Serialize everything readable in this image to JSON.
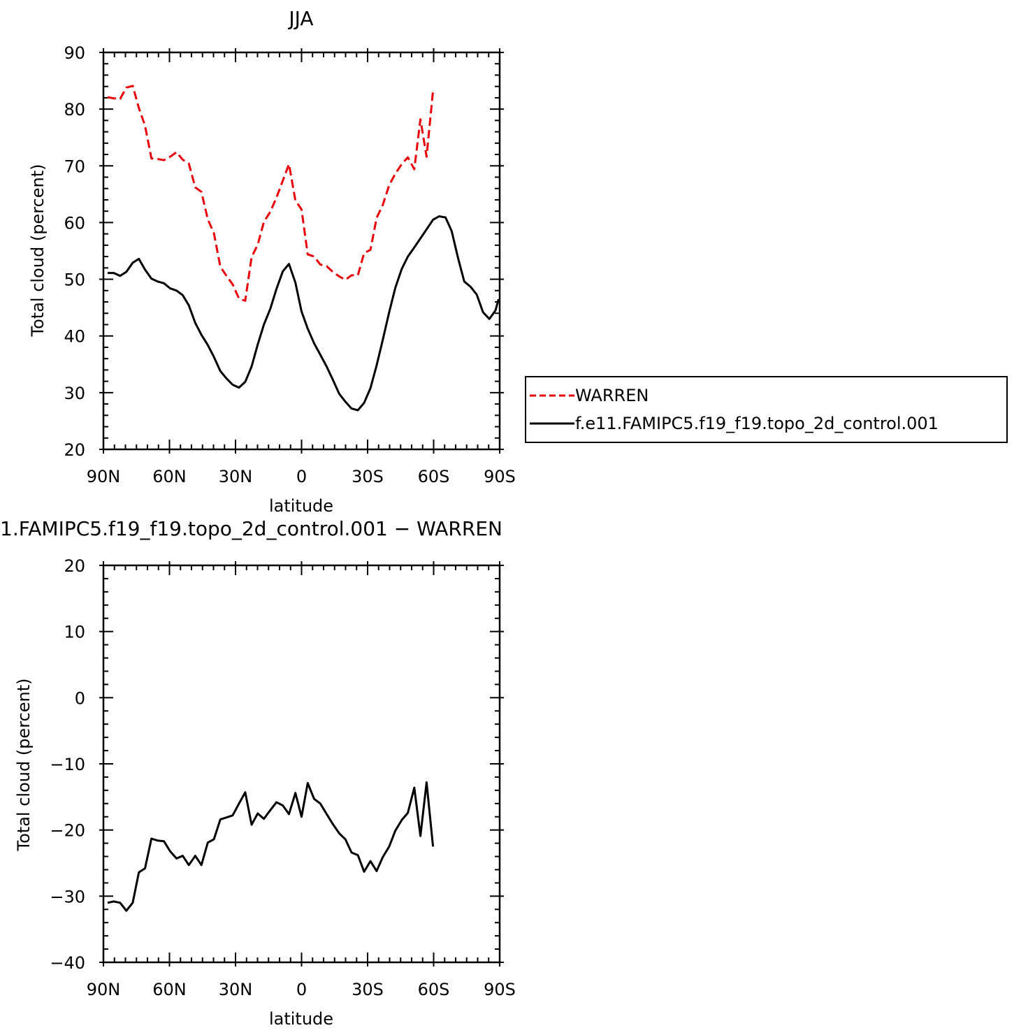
{
  "colors": {
    "warren": "#e8000b",
    "model": "#000000",
    "axes": "#000000",
    "background": "#ffffff"
  },
  "chart_data": [
    {
      "id": "top",
      "type": "line",
      "title": "JJA",
      "xlabel": "latitude",
      "ylabel": "Total cloud (percent)",
      "xlim": [
        -90,
        90
      ],
      "ylim": [
        20,
        90
      ],
      "x_direction": "north (90N) on left to south (90S) on right",
      "xticks": [
        -90,
        -60,
        -30,
        0,
        30,
        60,
        90
      ],
      "xtick_labels": [
        "90N",
        "60N",
        "30N",
        "0",
        "30S",
        "60S",
        "90S"
      ],
      "yticks": [
        20,
        30,
        40,
        50,
        60,
        70,
        80,
        90
      ],
      "ytick_labels": [
        "20",
        "30",
        "40",
        "50",
        "60",
        "70",
        "80",
        "90"
      ],
      "grid": false,
      "legend_position": "right of plot",
      "series": [
        {
          "name": "WARREN",
          "style": "dashed",
          "color": "#e8000b",
          "points": [
            [
              -88.1,
              82.1
            ],
            [
              -85.3,
              81.9
            ],
            [
              -82.4,
              81.8
            ],
            [
              -79.6,
              83.8
            ],
            [
              -76.7,
              84.1
            ],
            [
              -73.9,
              80.2
            ],
            [
              -71.1,
              77.1
            ],
            [
              -68.2,
              71.3
            ],
            [
              -65.4,
              71.2
            ],
            [
              -62.5,
              71.0
            ],
            [
              -59.7,
              71.6
            ],
            [
              -56.8,
              72.4
            ],
            [
              -54.0,
              71.1
            ],
            [
              -51.2,
              70.4
            ],
            [
              -48.3,
              66.2
            ],
            [
              -45.5,
              65.4
            ],
            [
              -42.6,
              60.6
            ],
            [
              -39.8,
              58.1
            ],
            [
              -36.9,
              52.2
            ],
            [
              -34.1,
              50.6
            ],
            [
              -31.3,
              49.1
            ],
            [
              -28.4,
              46.6
            ],
            [
              -25.6,
              46.2
            ],
            [
              -22.7,
              53.9
            ],
            [
              -19.9,
              56.1
            ],
            [
              -17.1,
              60.1
            ],
            [
              -14.2,
              61.9
            ],
            [
              -11.4,
              64.4
            ],
            [
              -8.5,
              67.4
            ],
            [
              -5.7,
              70.3
            ],
            [
              -2.8,
              63.9
            ],
            [
              0.0,
              62.3
            ],
            [
              2.8,
              54.4
            ],
            [
              5.7,
              54.0
            ],
            [
              8.5,
              52.6
            ],
            [
              11.4,
              52.3
            ],
            [
              14.2,
              51.3
            ],
            [
              17.1,
              50.5
            ],
            [
              19.9,
              49.9
            ],
            [
              22.7,
              50.7
            ],
            [
              25.6,
              50.7
            ],
            [
              28.4,
              54.6
            ],
            [
              31.3,
              55.2
            ],
            [
              34.1,
              60.8
            ],
            [
              36.9,
              63.1
            ],
            [
              39.8,
              66.6
            ],
            [
              42.6,
              68.6
            ],
            [
              45.5,
              70.3
            ],
            [
              48.3,
              71.5
            ],
            [
              51.2,
              69.4
            ],
            [
              54.0,
              78.2
            ],
            [
              56.8,
              71.6
            ],
            [
              59.7,
              83.2
            ]
          ]
        },
        {
          "name": "f.e11.FAMIPC5.f19_f19.topo_2d_control.001",
          "style": "solid",
          "color": "#000000",
          "points": [
            [
              -88.1,
              51.1
            ],
            [
              -85.3,
              51.1
            ],
            [
              -82.4,
              50.6
            ],
            [
              -79.6,
              51.3
            ],
            [
              -76.7,
              52.9
            ],
            [
              -73.9,
              53.6
            ],
            [
              -71.1,
              51.7
            ],
            [
              -68.2,
              50.1
            ],
            [
              -65.4,
              49.6
            ],
            [
              -62.5,
              49.3
            ],
            [
              -59.7,
              48.4
            ],
            [
              -56.8,
              48.0
            ],
            [
              -54.0,
              47.2
            ],
            [
              -51.2,
              45.4
            ],
            [
              -48.3,
              42.3
            ],
            [
              -45.5,
              40.2
            ],
            [
              -42.6,
              38.4
            ],
            [
              -39.8,
              36.3
            ],
            [
              -36.9,
              33.8
            ],
            [
              -34.1,
              32.5
            ],
            [
              -31.3,
              31.4
            ],
            [
              -28.4,
              30.9
            ],
            [
              -25.6,
              31.9
            ],
            [
              -22.7,
              34.6
            ],
            [
              -19.9,
              38.5
            ],
            [
              -17.1,
              42.0
            ],
            [
              -14.2,
              44.8
            ],
            [
              -11.4,
              48.3
            ],
            [
              -8.5,
              51.4
            ],
            [
              -5.7,
              52.7
            ],
            [
              -2.8,
              49.4
            ],
            [
              0.0,
              44.3
            ],
            [
              2.8,
              41.3
            ],
            [
              5.7,
              38.7
            ],
            [
              8.5,
              36.7
            ],
            [
              11.4,
              34.6
            ],
            [
              14.2,
              32.3
            ],
            [
              17.1,
              29.8
            ],
            [
              19.9,
              28.4
            ],
            [
              22.7,
              27.2
            ],
            [
              25.6,
              26.9
            ],
            [
              28.4,
              28.2
            ],
            [
              31.3,
              30.8
            ],
            [
              34.1,
              34.8
            ],
            [
              36.9,
              39.3
            ],
            [
              39.8,
              44.2
            ],
            [
              42.6,
              48.5
            ],
            [
              45.5,
              51.8
            ],
            [
              48.3,
              54.0
            ],
            [
              51.2,
              55.6
            ],
            [
              54.0,
              57.2
            ],
            [
              56.8,
              58.8
            ],
            [
              59.7,
              60.5
            ],
            [
              62.5,
              61.1
            ],
            [
              65.4,
              60.9
            ],
            [
              68.2,
              58.5
            ],
            [
              71.1,
              53.7
            ],
            [
              73.9,
              49.6
            ],
            [
              76.7,
              48.7
            ],
            [
              79.6,
              47.3
            ],
            [
              82.4,
              44.2
            ],
            [
              85.3,
              43.0
            ],
            [
              88.1,
              44.5
            ],
            [
              89.5,
              46.5
            ]
          ]
        }
      ]
    },
    {
      "id": "bottom",
      "type": "line",
      "title": "1.FAMIPC5.f19_f19.topo_2d_control.001 − WARREN",
      "xlabel": "latitude",
      "ylabel": "Total cloud (percent)",
      "xlim": [
        -90,
        90
      ],
      "ylim": [
        -40,
        20
      ],
      "xticks": [
        -90,
        -60,
        -30,
        0,
        30,
        60,
        90
      ],
      "xtick_labels": [
        "90N",
        "60N",
        "30N",
        "0",
        "30S",
        "60S",
        "90S"
      ],
      "yticks": [
        -40,
        -30,
        -20,
        -10,
        0,
        10,
        20
      ],
      "ytick_labels": [
        "−40",
        "−30",
        "−20",
        "−10",
        "0",
        "10",
        "20"
      ],
      "grid": false,
      "series": [
        {
          "style": "solid",
          "color": "#000000",
          "points": [
            [
              -88.1,
              -31.0
            ],
            [
              -85.3,
              -30.8
            ],
            [
              -82.4,
              -31.0
            ],
            [
              -79.6,
              -32.2
            ],
            [
              -76.7,
              -31.0
            ],
            [
              -73.9,
              -26.4
            ],
            [
              -71.1,
              -25.8
            ],
            [
              -68.2,
              -21.3
            ],
            [
              -65.4,
              -21.6
            ],
            [
              -62.5,
              -21.7
            ],
            [
              -59.7,
              -23.2
            ],
            [
              -56.8,
              -24.3
            ],
            [
              -54.0,
              -23.9
            ],
            [
              -51.2,
              -25.3
            ],
            [
              -48.3,
              -23.9
            ],
            [
              -45.5,
              -25.3
            ],
            [
              -42.6,
              -21.9
            ],
            [
              -39.8,
              -21.4
            ],
            [
              -36.9,
              -18.4
            ],
            [
              -34.1,
              -18.1
            ],
            [
              -31.3,
              -17.8
            ],
            [
              -28.4,
              -16.0
            ],
            [
              -25.6,
              -14.3
            ],
            [
              -22.7,
              -19.2
            ],
            [
              -19.9,
              -17.5
            ],
            [
              -17.1,
              -18.3
            ],
            [
              -14.2,
              -17.0
            ],
            [
              -11.4,
              -15.8
            ],
            [
              -8.5,
              -16.3
            ],
            [
              -5.7,
              -17.6
            ],
            [
              -2.8,
              -14.4
            ],
            [
              0.0,
              -18.0
            ],
            [
              2.8,
              -12.9
            ],
            [
              5.7,
              -15.3
            ],
            [
              8.5,
              -16.0
            ],
            [
              11.4,
              -17.6
            ],
            [
              14.2,
              -19.1
            ],
            [
              17.1,
              -20.5
            ],
            [
              19.9,
              -21.4
            ],
            [
              22.7,
              -23.4
            ],
            [
              25.6,
              -23.8
            ],
            [
              28.4,
              -26.3
            ],
            [
              31.3,
              -24.7
            ],
            [
              34.1,
              -26.2
            ],
            [
              36.9,
              -24.1
            ],
            [
              39.8,
              -22.5
            ],
            [
              42.6,
              -20.1
            ],
            [
              45.5,
              -18.5
            ],
            [
              48.3,
              -17.4
            ],
            [
              51.2,
              -13.6
            ],
            [
              54.0,
              -20.9
            ],
            [
              56.8,
              -12.8
            ],
            [
              59.7,
              -22.5
            ]
          ]
        }
      ]
    }
  ]
}
